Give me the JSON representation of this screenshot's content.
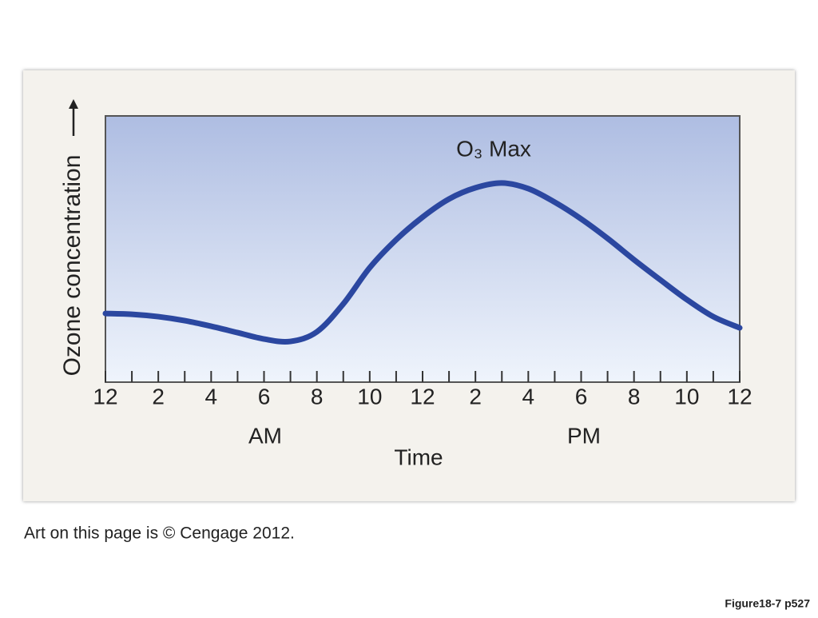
{
  "chart_data": {
    "type": "line",
    "annotation": "O₃ Max",
    "y_label": "Ozone concentration",
    "x_label": "Time",
    "periods": [
      "AM",
      "PM"
    ],
    "x": [
      0,
      1,
      2,
      3,
      4,
      5,
      6,
      7,
      8,
      9,
      10,
      11,
      12,
      13,
      14,
      15,
      16,
      17,
      18,
      19,
      20,
      21,
      22,
      23,
      24
    ],
    "series": [
      {
        "color": "#2b47a0",
        "values": [
          25.8,
          25.5,
          24.6,
          23.1,
          21,
          18.6,
          16.2,
          15.3,
          18.9,
          29.4,
          43,
          53.5,
          62,
          68.8,
          73,
          74.8,
          72.7,
          67.6,
          61.3,
          54,
          46,
          38.4,
          31,
          24.6,
          20.4
        ]
      }
    ],
    "xlim": [
      0,
      24
    ],
    "ylim": [
      0,
      100
    ],
    "xticks": [
      {
        "value": 0,
        "label": "12"
      },
      2,
      4,
      6,
      8,
      10,
      12,
      {
        "value": 14,
        "label": "2"
      },
      {
        "value": 16,
        "label": "4"
      },
      {
        "value": 18,
        "label": "6"
      },
      {
        "value": 20,
        "label": "8"
      },
      {
        "value": 22,
        "label": "10"
      },
      {
        "value": 24,
        "label": "12"
      }
    ],
    "xminorticks": [
      1,
      3,
      5,
      7,
      9,
      11,
      13,
      15,
      17,
      19,
      21,
      23
    ]
  },
  "caption": "Art on this page is © Cengage 2012.",
  "figure_label": "Figure18-7 p527"
}
